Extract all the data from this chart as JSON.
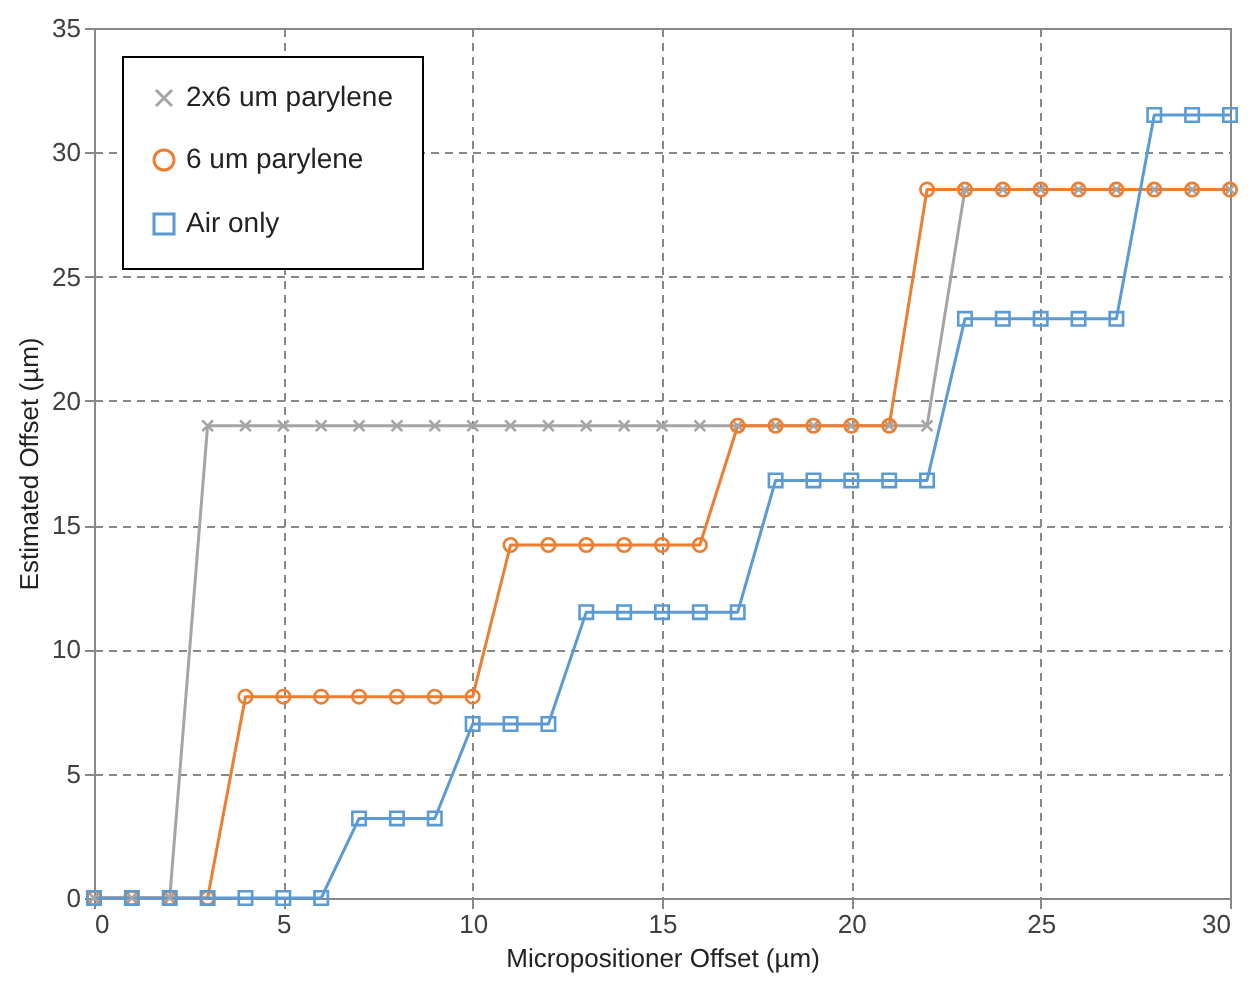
{
  "chart_data": {
    "type": "line",
    "xlabel": "Micropositioner Offset (µm)",
    "ylabel": "Estimated Offset (µm)",
    "x": [
      0,
      1,
      2,
      3,
      4,
      5,
      6,
      7,
      8,
      9,
      10,
      11,
      12,
      13,
      14,
      15,
      16,
      17,
      18,
      19,
      20,
      21,
      22,
      23,
      24,
      25,
      26,
      27,
      28,
      29,
      30
    ],
    "series": [
      {
        "name": "2x6 um parylene",
        "color": "#a5a5a5",
        "marker": "cross",
        "values": [
          0,
          0,
          0,
          19,
          19,
          19,
          19,
          19,
          19,
          19,
          19,
          19,
          19,
          19,
          19,
          19,
          19,
          19,
          19,
          19,
          19,
          19,
          19,
          28.5,
          28.5,
          28.5,
          28.5,
          28.5,
          28.5,
          28.5,
          28.5
        ]
      },
      {
        "name": "6 um parylene",
        "color": "#ed7d31",
        "marker": "circle",
        "values": [
          0,
          0,
          0,
          0,
          8.1,
          8.1,
          8.1,
          8.1,
          8.1,
          8.1,
          8.1,
          14.2,
          14.2,
          14.2,
          14.2,
          14.2,
          14.2,
          19,
          19,
          19,
          19,
          19,
          28.5,
          28.5,
          28.5,
          28.5,
          28.5,
          28.5,
          28.5,
          28.5,
          28.5
        ]
      },
      {
        "name": "Air only",
        "color": "#5b9bd5",
        "marker": "square",
        "values": [
          0,
          0,
          0,
          0,
          0,
          0,
          0,
          3.2,
          3.2,
          3.2,
          7,
          7,
          7,
          11.5,
          11.5,
          11.5,
          11.5,
          11.5,
          16.8,
          16.8,
          16.8,
          16.8,
          16.8,
          23.3,
          23.3,
          23.3,
          23.3,
          23.3,
          31.5,
          31.5,
          31.5
        ]
      }
    ],
    "xlim": [
      0,
      30
    ],
    "xticks": [
      0,
      5,
      10,
      15,
      20,
      25,
      30
    ],
    "ylim": [
      0,
      35
    ],
    "yticks": [
      0,
      5,
      10,
      15,
      20,
      25,
      30,
      35
    ],
    "grid": true,
    "legend": "top left",
    "line_style": "solid"
  }
}
